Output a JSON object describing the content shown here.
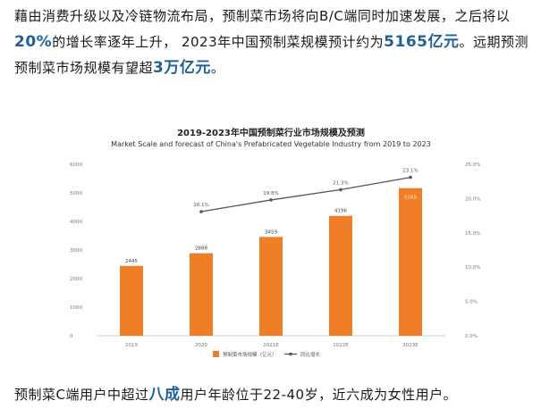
{
  "paragraph1": {
    "t1": "藉由消费升级以及冷链物流布局，预制菜市场将向B/C端同时加速发展，之后将以",
    "b1": "20%",
    "t2": "的增长率逐年上升，  2023年中国预制菜规模预计约为",
    "b2": "5165亿元",
    "t3": "。远期预测预制菜市场规模有望超",
    "b3": "3万亿元",
    "t4": "。"
  },
  "paragraph2": {
    "t1": "预制菜C端用户中超过",
    "b1": "八成",
    "t2": "用户年龄位于22-40岁，近六成为女性用户。"
  },
  "chart_data": {
    "type": "bar",
    "title": "2019-2023年中国预制菜行业市场规模及预测",
    "subtitle": "Market Scale and forecast of China's Prefabricated Vegetable Industry from 2019 to 2023",
    "categories": [
      "2019",
      "2020",
      "2021E",
      "2022E",
      "2023E"
    ],
    "series": [
      {
        "name": "预制菜市场规模（亿元）",
        "type": "bar",
        "values": [
          2445,
          2888,
          3459,
          4196,
          5165
        ],
        "labels": [
          "2445",
          "2888",
          "3459",
          "4196",
          "5165"
        ],
        "color": "#f07e26"
      },
      {
        "name": "同比增长",
        "type": "line",
        "values": [
          null,
          18.1,
          19.8,
          21.3,
          23.1
        ],
        "labels": [
          "",
          "18.1%",
          "19.8%",
          "21.3%",
          "23.1%"
        ],
        "color": "#555555"
      }
    ],
    "ylim_left": [
      0,
      6000
    ],
    "yticks_left": [
      "0",
      "1000",
      "2000",
      "3000",
      "4000",
      "5000",
      "6000"
    ],
    "ylim_right": [
      0,
      25
    ],
    "yticks_right": [
      "0.0%",
      "5.0%",
      "10.0%",
      "15.0%",
      "20.0%",
      "25.0%"
    ],
    "legend_position": "bottom",
    "grid": false
  }
}
